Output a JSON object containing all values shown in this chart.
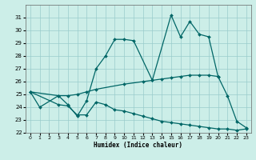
{
  "xlabel": "Humidex (Indice chaleur)",
  "background_color": "#cceee8",
  "grid_color": "#99cccc",
  "line_color": "#006666",
  "ylim": [
    22,
    32
  ],
  "xlim": [
    -0.5,
    23.5
  ],
  "yticks": [
    22,
    23,
    24,
    25,
    26,
    27,
    28,
    29,
    30,
    31
  ],
  "xticks": [
    0,
    1,
    2,
    3,
    4,
    5,
    6,
    7,
    8,
    9,
    10,
    11,
    12,
    13,
    14,
    15,
    16,
    17,
    18,
    19,
    20,
    21,
    22,
    23
  ],
  "line_a_x": [
    0,
    1,
    3,
    4,
    5,
    6,
    7,
    8,
    9,
    10,
    11,
    13,
    15,
    16,
    17,
    18,
    19,
    20,
    21,
    22,
    23
  ],
  "line_a_y": [
    25.2,
    24.0,
    24.9,
    24.2,
    23.3,
    24.5,
    27.0,
    28.0,
    29.3,
    29.3,
    29.2,
    26.1,
    31.2,
    29.5,
    30.7,
    29.7,
    29.5,
    26.4,
    24.9,
    22.9,
    22.4
  ],
  "line_b_x": [
    0,
    3,
    4,
    5,
    6,
    7,
    10,
    12,
    13,
    14,
    15,
    16,
    17,
    18,
    19,
    20
  ],
  "line_b_y": [
    25.2,
    24.9,
    24.9,
    25.0,
    25.2,
    25.4,
    25.8,
    26.0,
    26.1,
    26.2,
    26.3,
    26.4,
    26.5,
    26.5,
    26.5,
    26.4
  ],
  "line_c_x": [
    0,
    3,
    4,
    5,
    6,
    7,
    8,
    9,
    10,
    11,
    12,
    13,
    14,
    15,
    16,
    17,
    18,
    19,
    20,
    21,
    22,
    23
  ],
  "line_c_y": [
    25.2,
    24.2,
    24.1,
    23.4,
    23.4,
    24.4,
    24.2,
    23.8,
    23.7,
    23.5,
    23.3,
    23.1,
    22.9,
    22.8,
    22.7,
    22.6,
    22.5,
    22.4,
    22.3,
    22.3,
    22.2,
    22.3
  ]
}
